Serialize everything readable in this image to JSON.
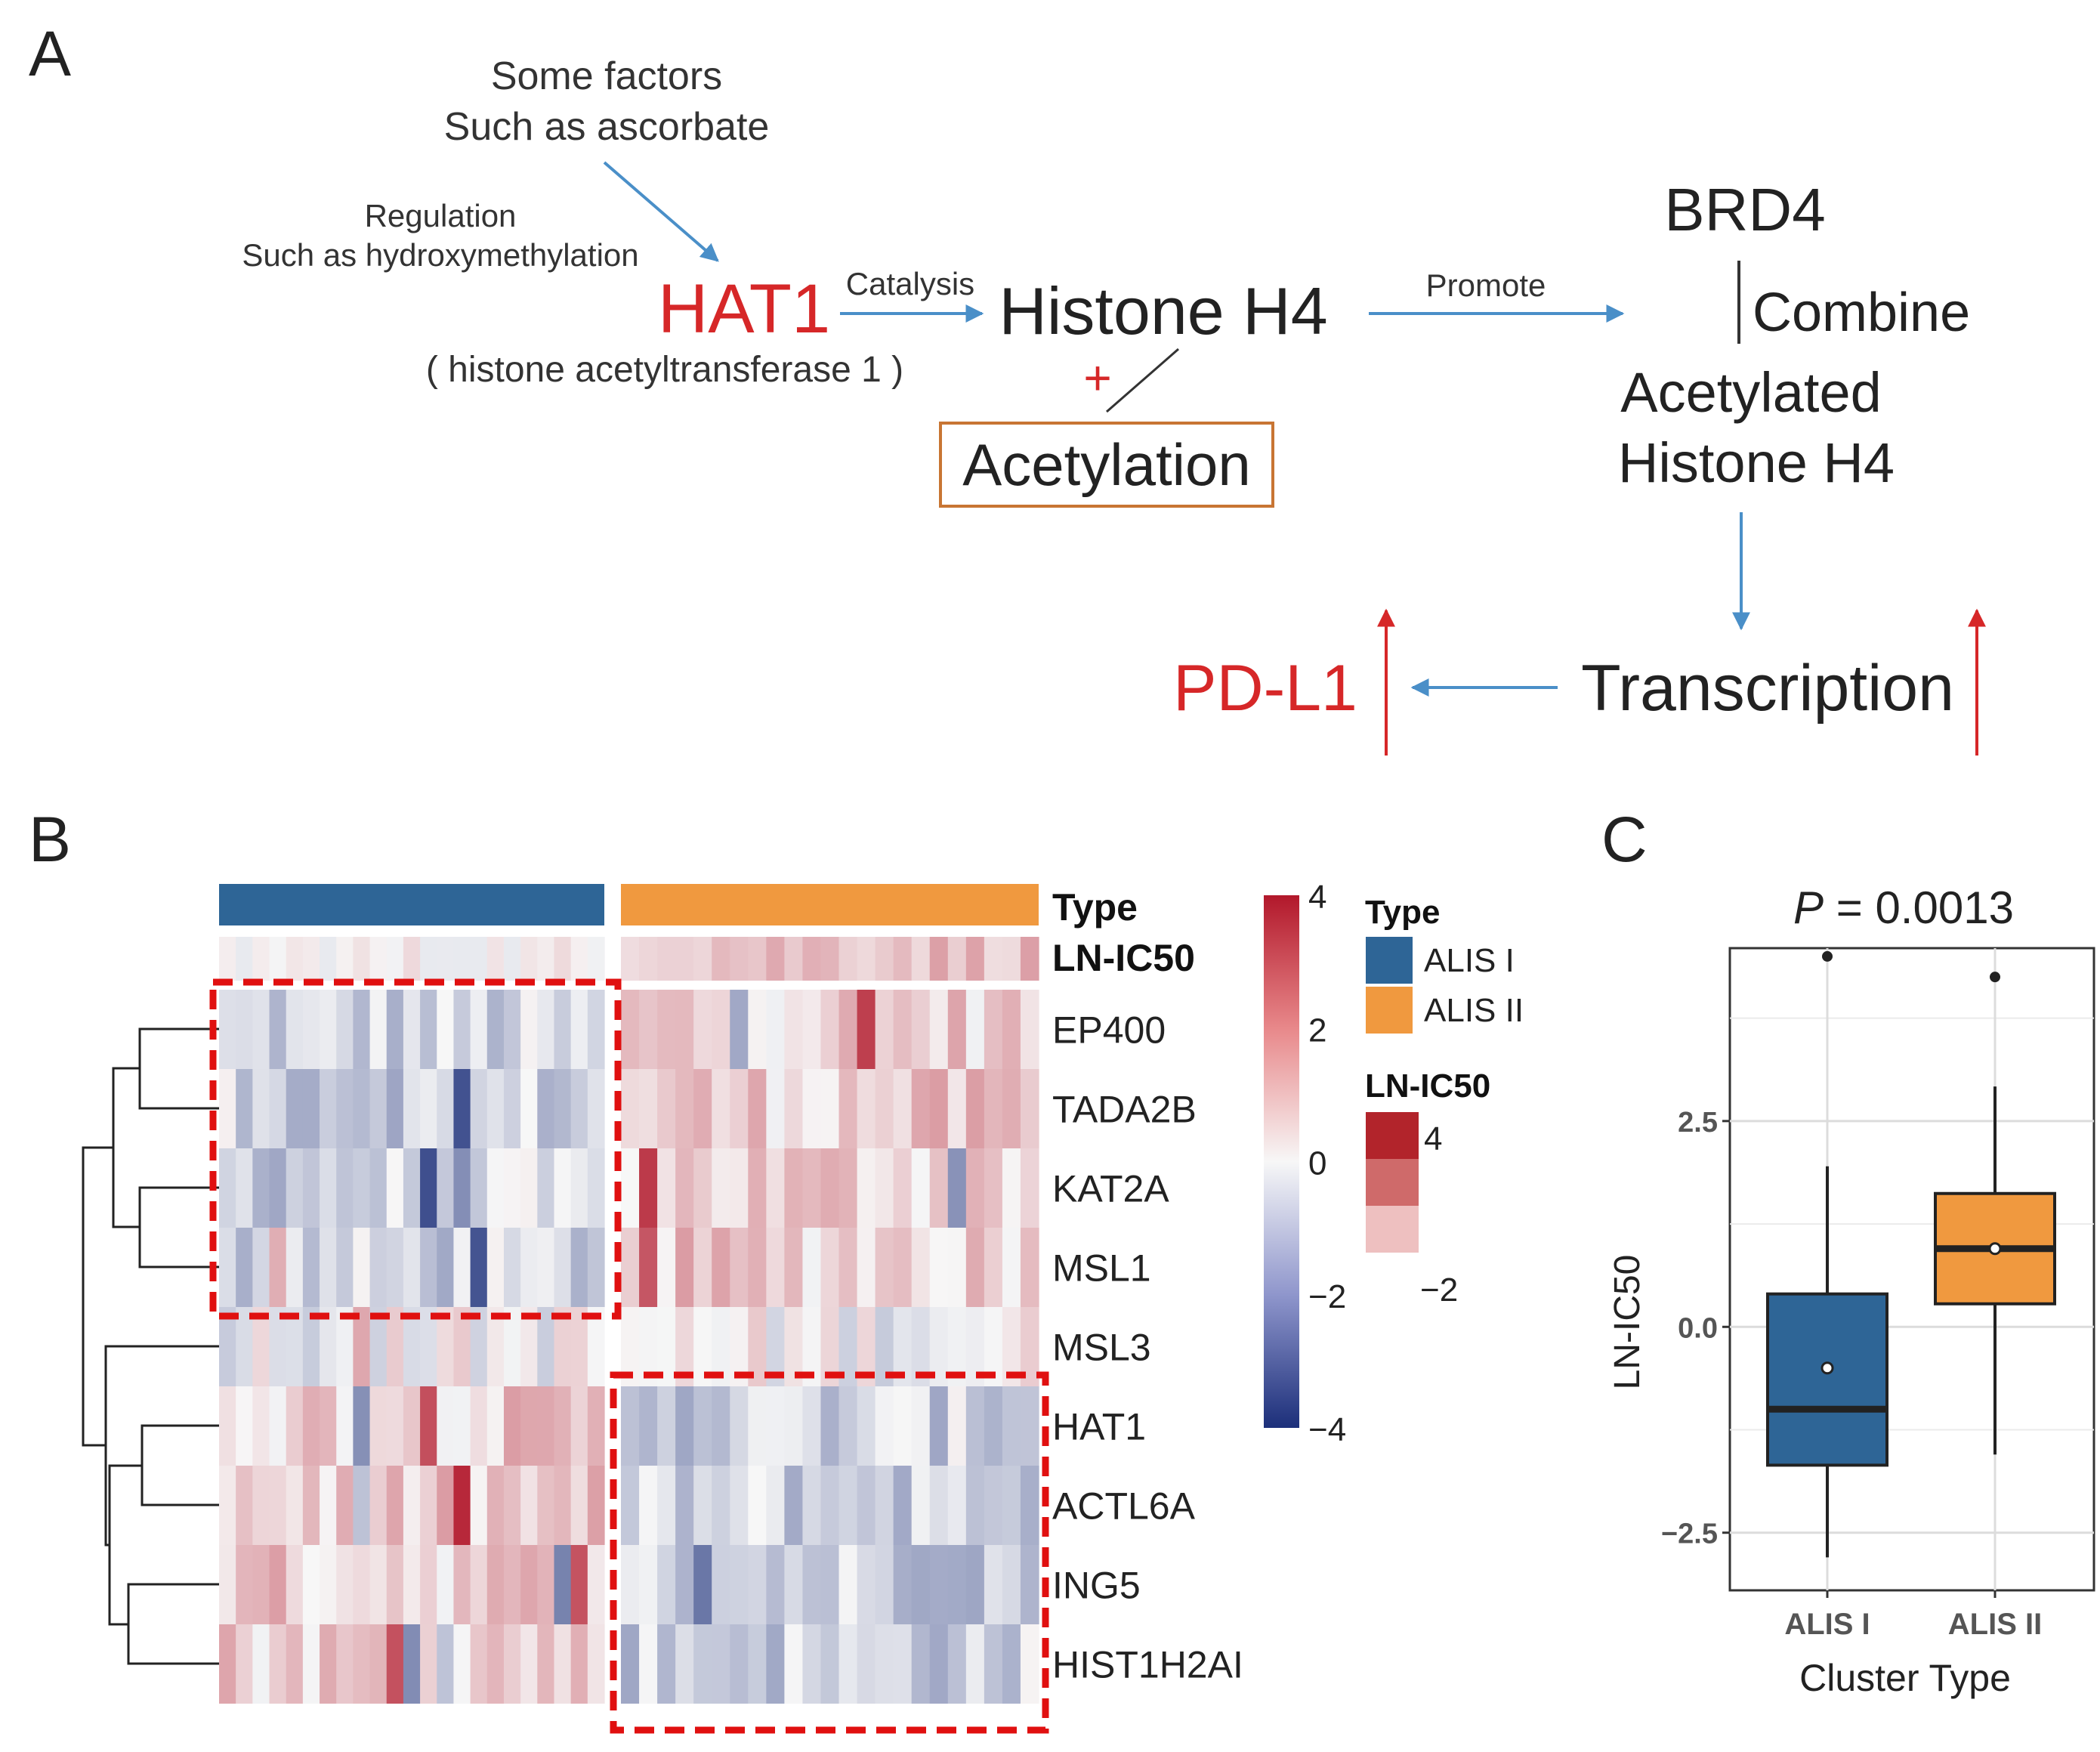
{
  "panel_labels": {
    "a": "A",
    "b": "B",
    "c": "C"
  },
  "colors": {
    "red": "#d62728",
    "arrow_blue": "#4a8fc8",
    "orange_box": "#c87533",
    "alis1": "#2e6596",
    "alis2": "#f0993f",
    "dash_red": "#e01010",
    "heat_high": "#b2182b",
    "heat_low": "#1c2f7a"
  },
  "pathway": {
    "factors_line1": "Some factors",
    "factors_line2": "Such as ascorbate",
    "regulation_line1": "Regulation",
    "regulation_line2": "Such as hydroxymethylation",
    "hat1": "HAT1",
    "hat1_full": "( histone acetyltransferase 1 )",
    "catalysis": "Catalysis",
    "histone_h4": "Histone H4",
    "plus": "+",
    "acetylation": "Acetylation",
    "promote": "Promote",
    "brd4": "BRD4",
    "combine": "Combine",
    "acetylated_line1": "Acetylated",
    "acetylated_line2": "Histone H4",
    "transcription": "Transcription",
    "pdl1": "PD-L1"
  },
  "heatmap": {
    "annotation_labels": [
      "Type",
      "LN-IC50"
    ],
    "genes": [
      "EP400",
      "TADA2B",
      "KAT2A",
      "MSL1",
      "MSL3",
      "HAT1",
      "ACTL6A",
      "ING5",
      "HIST1H2AI"
    ],
    "groups": [
      "ALIS I",
      "ALIS II"
    ],
    "samples_per_group": 23,
    "group_mean_direction": [
      [
        -1,
        1
      ],
      [
        -1,
        1
      ],
      [
        -1,
        1
      ],
      [
        -1,
        1
      ],
      [
        0,
        0
      ],
      [
        1,
        -1
      ],
      [
        1,
        -1
      ],
      [
        1,
        -1
      ],
      [
        1,
        -1
      ]
    ],
    "ln_ic50_direction": [
      -1,
      1
    ],
    "color_scale": {
      "ticks": [
        "4",
        "2",
        "0",
        "−2",
        "−4"
      ],
      "min": -4,
      "max": 4
    },
    "legend": {
      "type_title": "Type",
      "type_items": [
        "ALIS I",
        "ALIS II"
      ],
      "ln_title": "LN-IC50",
      "ln_high": "4",
      "ln_low": "−2"
    }
  },
  "chart_data": {
    "type": "box",
    "title": "P = 0.0013",
    "title_p": "P",
    "title_rest": " = 0.0013",
    "xlabel": "Cluster Type",
    "ylabel": "LN-IC50",
    "categories": [
      "ALIS I",
      "ALIS II"
    ],
    "yticks": [
      -2.5,
      0.0,
      2.5
    ],
    "ytick_labels": [
      "−2.5",
      "0.0",
      "2.5"
    ],
    "ylim": [
      -3.2,
      4.6
    ],
    "series": [
      {
        "name": "ALIS I",
        "whisker_low": -2.8,
        "q1": -1.68,
        "median": -1.0,
        "q3": 0.4,
        "whisker_high": 1.95,
        "mean": -0.5,
        "outliers": [
          4.5
        ]
      },
      {
        "name": "ALIS II",
        "whisker_low": -1.55,
        "q1": 0.28,
        "median": 0.95,
        "q3": 1.62,
        "whisker_high": 2.92,
        "mean": 0.95,
        "outliers": [
          4.25
        ]
      }
    ]
  }
}
